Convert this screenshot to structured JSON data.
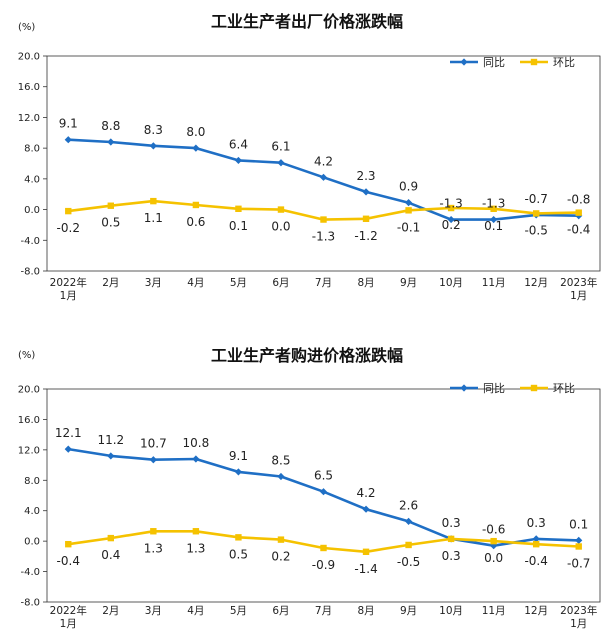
{
  "chart_data": [
    {
      "type": "line",
      "title": "工业生产者出厂价格涨跌幅",
      "ylabel": "(%)",
      "categories": [
        "2022年\n1月",
        "2月",
        "3月",
        "4月",
        "5月",
        "6月",
        "7月",
        "8月",
        "9月",
        "10月",
        "11月",
        "12月",
        "2023年\n1月"
      ],
      "ylim": [
        -8.0,
        20.0
      ],
      "yticks": [
        "20.0",
        "16.0",
        "12.0",
        "8.0",
        "4.0",
        "0.0",
        "-4.0",
        "-8.0"
      ],
      "legend_position": "top-right",
      "grid": false,
      "series": [
        {
          "name": "同比",
          "color": "#1f6fc5",
          "values": [
            9.1,
            8.8,
            8.3,
            8.0,
            6.4,
            6.1,
            4.2,
            2.3,
            0.9,
            -1.3,
            -1.3,
            -0.7,
            -0.8
          ],
          "labels": [
            "9.1",
            "8.8",
            "8.3",
            "8.0",
            "6.4",
            "6.1",
            "4.2",
            "2.3",
            "0.9",
            "-1.3",
            "-1.3",
            "-0.7",
            "-0.8"
          ]
        },
        {
          "name": "环比",
          "color": "#f5c200",
          "values": [
            -0.2,
            0.5,
            1.1,
            0.6,
            0.1,
            0.0,
            -1.3,
            -1.2,
            -0.1,
            0.2,
            0.1,
            -0.5,
            -0.4
          ],
          "labels": [
            "-0.2",
            "0.5",
            "1.1",
            "0.6",
            "0.1",
            "0.0",
            "-1.3",
            "-1.2",
            "-0.1",
            "0.2",
            "0.1",
            "-0.5",
            "-0.4"
          ]
        }
      ]
    },
    {
      "type": "line",
      "title": "工业生产者购进价格涨跌幅",
      "ylabel": "(%)",
      "categories": [
        "2022年\n1月",
        "2月",
        "3月",
        "4月",
        "5月",
        "6月",
        "7月",
        "8月",
        "9月",
        "10月",
        "11月",
        "12月",
        "2023年\n1月"
      ],
      "ylim": [
        -8.0,
        20.0
      ],
      "yticks": [
        "20.0",
        "16.0",
        "12.0",
        "8.0",
        "4.0",
        "0.0",
        "-4.0",
        "-8.0"
      ],
      "legend_position": "top-right",
      "grid": false,
      "series": [
        {
          "name": "同比",
          "color": "#1f6fc5",
          "values": [
            12.1,
            11.2,
            10.7,
            10.8,
            9.1,
            8.5,
            6.5,
            4.2,
            2.6,
            0.3,
            -0.6,
            0.3,
            0.1
          ],
          "labels": [
            "12.1",
            "11.2",
            "10.7",
            "10.8",
            "9.1",
            "8.5",
            "6.5",
            "4.2",
            "2.6",
            "0.3",
            "-0.6",
            "0.3",
            "0.1"
          ]
        },
        {
          "name": "环比",
          "color": "#f5c200",
          "values": [
            -0.4,
            0.4,
            1.3,
            1.3,
            0.5,
            0.2,
            -0.9,
            -1.4,
            -0.5,
            0.3,
            0.0,
            -0.4,
            -0.7
          ],
          "labels": [
            "-0.4",
            "0.4",
            "1.3",
            "1.3",
            "0.5",
            "0.2",
            "-0.9",
            "-1.4",
            "-0.5",
            "0.3",
            "0.0",
            "-0.4",
            "-0.7"
          ]
        }
      ]
    }
  ]
}
